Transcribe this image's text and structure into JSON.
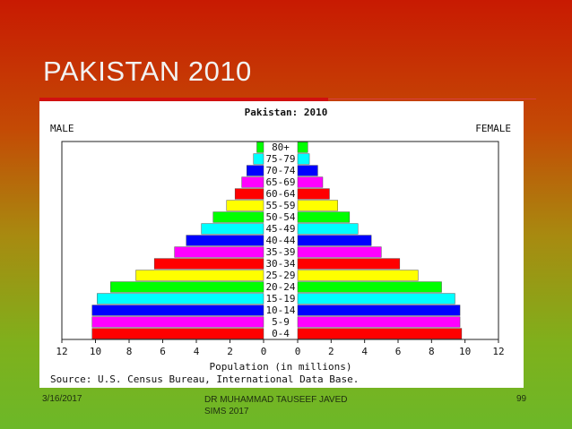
{
  "slide": {
    "title": "PAKISTAN 2010",
    "date": "3/16/2017",
    "author": "DR MUHAMMAD TAUSEEF JAVED SIMS 2017",
    "page": "99"
  },
  "chart_data": {
    "type": "pyramid",
    "title": "Pakistan: 2010",
    "categories": [
      "0-4",
      "5-9",
      "10-14",
      "15-19",
      "20-24",
      "25-29",
      "30-34",
      "35-39",
      "40-44",
      "45-49",
      "50-54",
      "55-59",
      "60-64",
      "65-69",
      "70-74",
      "75-79",
      "80+"
    ],
    "colors": [
      "#ff0000",
      "#ff00ff",
      "#0000ff",
      "#00ffff",
      "#00ff00",
      "#ffff00",
      "#ff0000",
      "#ff00ff",
      "#0000ff",
      "#00ffff",
      "#00ff00",
      "#ffff00",
      "#ff0000",
      "#ff00ff",
      "#0000ff",
      "#00ffff",
      "#00ff00"
    ],
    "series": [
      {
        "name": "MALE",
        "values": [
          10.2,
          10.2,
          10.2,
          9.9,
          9.1,
          7.6,
          6.5,
          5.3,
          4.6,
          3.7,
          3.0,
          2.2,
          1.7,
          1.3,
          1.0,
          0.6,
          0.4
        ]
      },
      {
        "name": "FEMALE",
        "values": [
          9.8,
          9.7,
          9.7,
          9.4,
          8.6,
          7.2,
          6.1,
          5.0,
          4.4,
          3.6,
          3.1,
          2.4,
          1.9,
          1.5,
          1.2,
          0.7,
          0.6
        ]
      }
    ],
    "xlabel": "Population (in millions)",
    "source": "Source: U.S. Census Bureau, International Data Base.",
    "xlim": [
      0,
      12
    ],
    "xticks": [
      0,
      2,
      4,
      6,
      8,
      10,
      12
    ]
  }
}
